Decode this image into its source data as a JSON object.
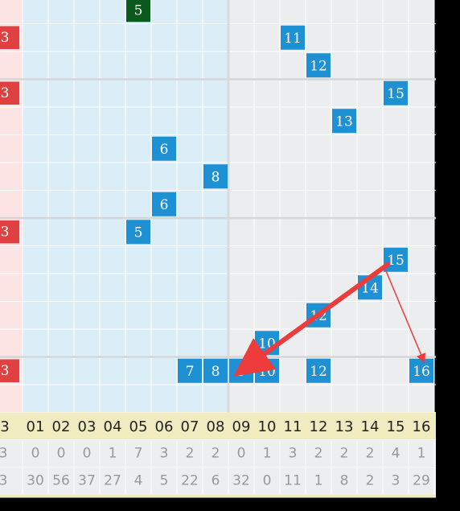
{
  "chart_data": {
    "type": "table",
    "title": "",
    "columns": [
      "3",
      "01",
      "02",
      "03",
      "04",
      "05",
      "06",
      "07",
      "08",
      "09",
      "10",
      "11",
      "12",
      "13",
      "14",
      "15",
      "16"
    ],
    "rows": [
      {
        "marker": "",
        "cells": [
          {
            "col": "05",
            "value": "5",
            "style": "green"
          }
        ]
      },
      {
        "marker": "3",
        "cells": [
          {
            "col": "11",
            "value": "11",
            "style": "blue"
          }
        ]
      },
      {
        "marker": "",
        "cells": [
          {
            "col": "12",
            "value": "12",
            "style": "blue"
          }
        ]
      },
      {
        "marker": "3",
        "cells": [
          {
            "col": "15",
            "value": "15",
            "style": "blue"
          }
        ]
      },
      {
        "marker": "",
        "cells": [
          {
            "col": "13",
            "value": "13",
            "style": "blue"
          }
        ]
      },
      {
        "marker": "",
        "cells": [
          {
            "col": "06",
            "value": "6",
            "style": "blue"
          }
        ]
      },
      {
        "marker": "",
        "cells": [
          {
            "col": "08",
            "value": "8",
            "style": "blue"
          }
        ]
      },
      {
        "marker": "",
        "cells": [
          {
            "col": "06",
            "value": "6",
            "style": "blue"
          }
        ]
      },
      {
        "marker": "3",
        "cells": [
          {
            "col": "05",
            "value": "5",
            "style": "blue"
          }
        ]
      },
      {
        "marker": "",
        "cells": [
          {
            "col": "15",
            "value": "15",
            "style": "blue"
          }
        ]
      },
      {
        "marker": "",
        "cells": [
          {
            "col": "14",
            "value": "14",
            "style": "blue"
          }
        ]
      },
      {
        "marker": "",
        "cells": [
          {
            "col": "12",
            "value": "12",
            "style": "blue"
          }
        ]
      },
      {
        "marker": "",
        "cells": [
          {
            "col": "10",
            "value": "10",
            "style": "blue"
          }
        ]
      },
      {
        "marker": "3",
        "cells": [
          {
            "col": "07",
            "value": "7",
            "style": "blue"
          },
          {
            "col": "08",
            "value": "8",
            "style": "blue"
          },
          {
            "col": "09",
            "value": "9",
            "style": "blue"
          },
          {
            "col": "10",
            "value": "10",
            "style": "blue"
          },
          {
            "col": "12",
            "value": "12",
            "style": "blue"
          },
          {
            "col": "16",
            "value": "16",
            "style": "blue"
          }
        ]
      },
      {
        "marker": "",
        "cells": []
      }
    ],
    "stats": [
      {
        "label": "3",
        "values": [
          "0",
          "0",
          "0",
          "1",
          "7",
          "3",
          "2",
          "2",
          "0",
          "1",
          "3",
          "2",
          "2",
          "2",
          "4",
          "1"
        ]
      },
      {
        "label": "3",
        "values": [
          "30",
          "56",
          "37",
          "27",
          "4",
          "5",
          "22",
          "6",
          "32",
          "0",
          "11",
          "1",
          "8",
          "2",
          "3",
          "29"
        ]
      }
    ],
    "arrows": [
      {
        "from": "15",
        "to": "9"
      },
      {
        "from": "15",
        "to": "16"
      }
    ],
    "colors": {
      "left_zone": "#dbeef8",
      "right_zone": "#ebedef",
      "cell_blue": "#1e90d4",
      "cell_green": "#0a5a1e",
      "marker_red": "#e04040",
      "marker_zone": "#fce4e4",
      "header_bg": "#f1ecc0",
      "stats_bg": "#eceeef",
      "arrow": "#ee3b3b"
    }
  }
}
